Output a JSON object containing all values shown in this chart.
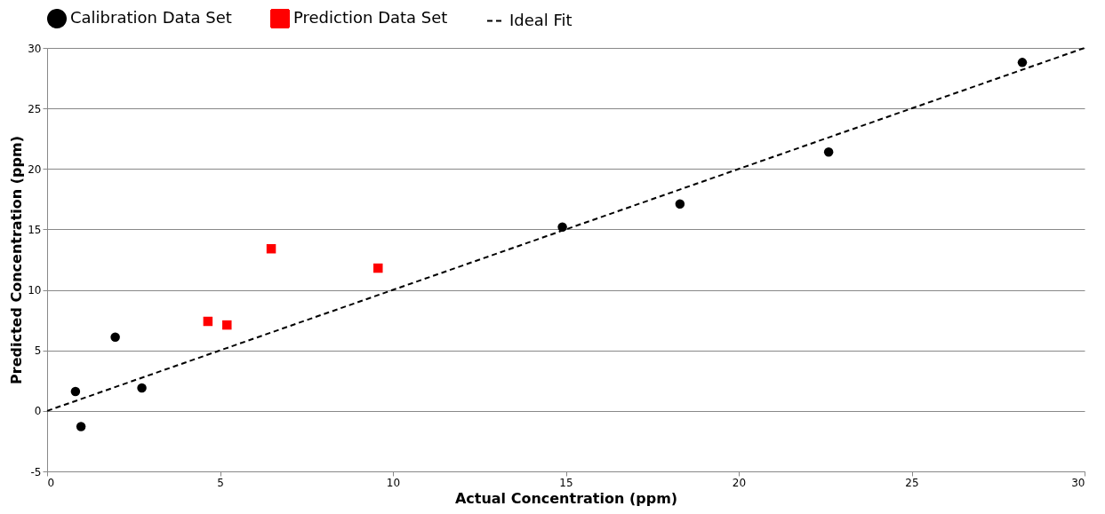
{
  "chart_data": {
    "type": "scatter",
    "xlabel": "Actual Concentration (ppm)",
    "ylabel": "Predicted Concentration (ppm)",
    "xlim": [
      0,
      30
    ],
    "xticks": [
      0,
      5,
      10,
      15,
      20,
      25,
      30
    ],
    "ylim": [
      -5,
      30
    ],
    "yticks": [
      -5,
      0,
      5,
      10,
      15,
      20,
      25,
      30
    ],
    "grid": "y",
    "legend": "top",
    "series": [
      {
        "name": "Calibration Data Set",
        "color": "#000000",
        "marker": "circle",
        "x": [
          0.82,
          0.98,
          1.97,
          2.74,
          14.9,
          18.3,
          22.6,
          28.2
        ],
        "values": [
          1.6,
          -1.3,
          6.1,
          1.9,
          15.2,
          17.1,
          21.4,
          28.8
        ]
      },
      {
        "name": "Prediction Data Set",
        "color": "#ff0000",
        "marker": "square",
        "x": [
          4.65,
          5.2,
          6.48,
          9.57
        ],
        "values": [
          7.4,
          7.1,
          13.4,
          11.8
        ]
      },
      {
        "name": "Ideal Fit",
        "type": "line",
        "color": "#000000",
        "marker": "none",
        "line_style": "dashed",
        "x": [
          0,
          30
        ],
        "values": [
          0,
          30
        ]
      }
    ]
  }
}
